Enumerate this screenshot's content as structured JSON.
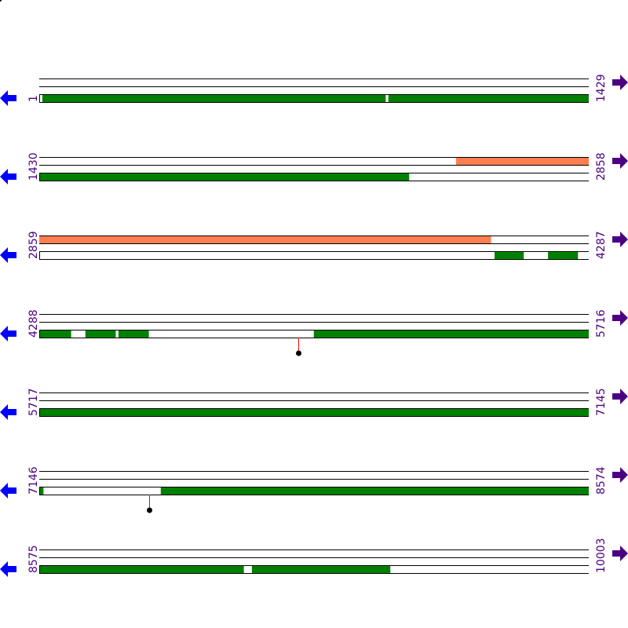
{
  "colors": {
    "track_line": "#000000",
    "feature_green": "#008000",
    "feature_orange": "#ff7f50",
    "label": "#4b0082",
    "arrow_left": "#0000ff",
    "arrow_right": "#4b0082",
    "marker_stem": "#ff0000",
    "marker_head": "#000000"
  },
  "icons": {
    "left": "arrow-left-icon",
    "right": "arrow-right-icon"
  },
  "rows": [
    {
      "start": "1",
      "end": "1429",
      "s": 1,
      "e": 1429,
      "features": [
        {
          "track": 3,
          "color": "green",
          "from": 9,
          "to": 901
        },
        {
          "track": 3,
          "color": "green",
          "from": 909,
          "to": 1429
        }
      ],
      "markers": []
    },
    {
      "start": "1430",
      "end": "2858",
      "s": 1430,
      "e": 2858,
      "features": [
        {
          "track": 1,
          "color": "orange",
          "from": 2514,
          "to": 2858
        },
        {
          "track": 3,
          "color": "green",
          "from": 1430,
          "to": 2391
        }
      ],
      "markers": []
    },
    {
      "start": "2859",
      "end": "4287",
      "s": 2859,
      "e": 4287,
      "features": [
        {
          "track": 1,
          "color": "orange",
          "from": 2859,
          "to": 4033
        },
        {
          "track": 3,
          "color": "green",
          "from": 4043,
          "to": 4118
        },
        {
          "track": 3,
          "color": "green",
          "from": 4182,
          "to": 4259
        }
      ],
      "markers": []
    },
    {
      "start": "4288",
      "end": "5716",
      "s": 4288,
      "e": 5716,
      "features": [
        {
          "track": 3,
          "color": "green",
          "from": 4288,
          "to": 4370
        },
        {
          "track": 3,
          "color": "green",
          "from": 4408,
          "to": 4486
        },
        {
          "track": 3,
          "color": "green",
          "from": 4494,
          "to": 4572
        },
        {
          "track": 3,
          "color": "green",
          "from": 5002,
          "to": 5716
        }
      ],
      "markers": [
        4962
      ]
    },
    {
      "start": "5717",
      "end": "7145",
      "s": 5717,
      "e": 7145,
      "features": [
        {
          "track": 3,
          "color": "green",
          "from": 5717,
          "to": 7145
        }
      ],
      "markers": []
    },
    {
      "start": "7146",
      "end": "8574",
      "s": 7146,
      "e": 8574,
      "features": [
        {
          "track": 3,
          "color": "green",
          "from": 7146,
          "to": 7156
        },
        {
          "track": 3,
          "color": "green",
          "from": 7462,
          "to": 8574
        }
      ],
      "markers": [
        7432
      ]
    },
    {
      "start": "8575",
      "end": "10003",
      "s": 8575,
      "e": 10003,
      "features": [
        {
          "track": 3,
          "color": "green",
          "from": 8575,
          "to": 9106
        },
        {
          "track": 3,
          "color": "green",
          "from": 9128,
          "to": 9487
        }
      ],
      "markers": []
    }
  ]
}
